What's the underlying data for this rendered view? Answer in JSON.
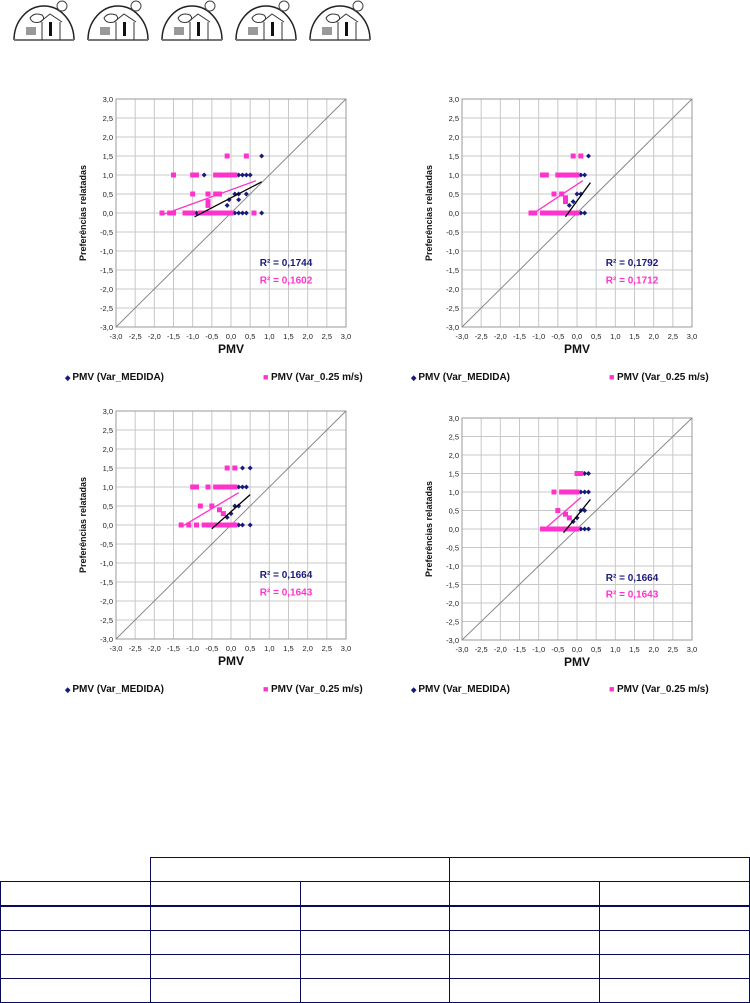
{
  "header": {
    "logo_count": 5
  },
  "chart_data": [
    {
      "type": "scatter",
      "xlabel": "PMV",
      "ylabel": "Preferências relatadas",
      "xlim": [
        -3,
        3
      ],
      "ylim": [
        -3,
        3
      ],
      "grid": true,
      "xticks": [
        "-3,0",
        "-2,5",
        "-2,0",
        "-1,5",
        "-1,0",
        "-0,5",
        "0,0",
        "0,5",
        "1,0",
        "1,5",
        "2,0",
        "2,5",
        "3,0"
      ],
      "yticks": [
        "3,0",
        "2,5",
        "2,0",
        "1,5",
        "1,0",
        "0,5",
        "0,0",
        "-0,5",
        "-1,0",
        "-1,5",
        "-2,0",
        "-2,5",
        "-3,0"
      ],
      "series": [
        {
          "name": "PMV (Var_MEDIDA)",
          "color": "#1a1a7a",
          "marker": "diamond",
          "r2": "R² = 0,1744",
          "points": [
            [
              -0.9,
              0
            ],
            [
              -0.8,
              0
            ],
            [
              0.1,
              0
            ],
            [
              0.2,
              0
            ],
            [
              0.3,
              0
            ],
            [
              0.4,
              0
            ],
            [
              0.8,
              0
            ],
            [
              0.1,
              0.5
            ],
            [
              0.2,
              0.5
            ],
            [
              0.4,
              0.5
            ],
            [
              -0.7,
              1
            ],
            [
              0.2,
              1
            ],
            [
              0.3,
              1
            ],
            [
              0.4,
              1
            ],
            [
              0.5,
              1
            ],
            [
              0.8,
              1.5
            ],
            [
              -0.1,
              0.2
            ],
            [
              0.2,
              0.35
            ],
            [
              -0.05,
              0.35
            ]
          ],
          "trend": [
            [
              -0.95,
              -0.1
            ],
            [
              0.8,
              0.82
            ]
          ]
        },
        {
          "name": "PMV (Var_0.25 m/s)",
          "color": "#ff33cc",
          "marker": "square",
          "r2": "R² = 0,1602",
          "points": [
            [
              -1.8,
              0
            ],
            [
              -1.6,
              0
            ],
            [
              -1.5,
              0
            ],
            [
              -1.2,
              0
            ],
            [
              -1.1,
              0
            ],
            [
              -1.0,
              0
            ],
            [
              -0.8,
              0
            ],
            [
              -0.7,
              0
            ],
            [
              -0.6,
              0
            ],
            [
              -0.5,
              0
            ],
            [
              -0.4,
              0
            ],
            [
              -0.3,
              0
            ],
            [
              -0.2,
              0
            ],
            [
              -0.1,
              0
            ],
            [
              0.0,
              0
            ],
            [
              0.6,
              0
            ],
            [
              -1.0,
              0.5
            ],
            [
              -0.6,
              0.5
            ],
            [
              -0.4,
              0.5
            ],
            [
              -0.3,
              0.5
            ],
            [
              -0.6,
              0.3
            ],
            [
              -0.6,
              0.2
            ],
            [
              -1.5,
              1
            ],
            [
              -1.0,
              1
            ],
            [
              -0.9,
              1
            ],
            [
              -0.4,
              1
            ],
            [
              -0.3,
              1
            ],
            [
              -0.2,
              1
            ],
            [
              -0.1,
              1
            ],
            [
              0.0,
              1
            ],
            [
              0.1,
              1
            ],
            [
              -0.1,
              1.5
            ],
            [
              0.4,
              1.5
            ]
          ],
          "trend": [
            [
              -1.8,
              -0.05
            ],
            [
              0.65,
              0.85
            ]
          ]
        }
      ]
    },
    {
      "type": "scatter",
      "xlabel": "PMV",
      "ylabel": "Preferências relatadas",
      "xlim": [
        -3,
        3
      ],
      "ylim": [
        -3,
        3
      ],
      "grid": true,
      "xticks": [
        "-3,0",
        "-2,5",
        "-2,0",
        "-1,5",
        "-1,0",
        "-0,5",
        "0,0",
        "0,5",
        "1,0",
        "1,5",
        "2,0",
        "2,5",
        "3,0"
      ],
      "yticks": [
        "3,0",
        "2,5",
        "2,0",
        "1,5",
        "1,0",
        "0,5",
        "0,0",
        "-0,5",
        "-1,0",
        "-1,5",
        "-2,0",
        "-2,5",
        "-3,0"
      ],
      "series": [
        {
          "name": "PMV (Var_MEDIDA)",
          "color": "#1a1a7a",
          "marker": "diamond",
          "r2": "R² = 0,1792",
          "points": [
            [
              -0.3,
              0
            ],
            [
              -0.2,
              0
            ],
            [
              0.0,
              0
            ],
            [
              0.1,
              0
            ],
            [
              0.2,
              0
            ],
            [
              -0.1,
              0.3
            ],
            [
              0.0,
              0.5
            ],
            [
              0.1,
              0.5
            ],
            [
              -0.2,
              0.2
            ],
            [
              0.0,
              1
            ],
            [
              0.1,
              1
            ],
            [
              0.2,
              1
            ],
            [
              0.3,
              1.5
            ],
            [
              0.1,
              1.5
            ]
          ],
          "trend": [
            [
              -0.3,
              -0.1
            ],
            [
              0.35,
              0.8
            ]
          ]
        },
        {
          "name": "PMV (Var_0.25 m/s)",
          "color": "#ff33cc",
          "marker": "square",
          "r2": "R² = 0,1712",
          "points": [
            [
              -1.2,
              0
            ],
            [
              -1.1,
              0
            ],
            [
              -0.9,
              0
            ],
            [
              -0.8,
              0
            ],
            [
              -0.7,
              0
            ],
            [
              -0.6,
              0
            ],
            [
              -0.5,
              0
            ],
            [
              -0.4,
              0
            ],
            [
              -0.3,
              0
            ],
            [
              -0.2,
              0
            ],
            [
              -0.1,
              0
            ],
            [
              0.0,
              0
            ],
            [
              -0.6,
              0.5
            ],
            [
              -0.4,
              0.5
            ],
            [
              -0.3,
              0.4
            ],
            [
              -0.3,
              0.3
            ],
            [
              -0.9,
              1
            ],
            [
              -0.8,
              1
            ],
            [
              -0.5,
              1
            ],
            [
              -0.4,
              1
            ],
            [
              -0.3,
              1
            ],
            [
              -0.2,
              1
            ],
            [
              -0.1,
              1
            ],
            [
              0.0,
              1
            ],
            [
              -0.1,
              1.5
            ],
            [
              0.1,
              1.5
            ]
          ],
          "trend": [
            [
              -1.2,
              -0.05
            ],
            [
              0.15,
              0.85
            ]
          ]
        }
      ]
    },
    {
      "type": "scatter",
      "xlabel": "PMV",
      "ylabel": "Preferências relatadas",
      "xlim": [
        -3,
        3
      ],
      "ylim": [
        -3,
        3
      ],
      "grid": true,
      "xticks": [
        "-3,0",
        "-2,5",
        "-2,0",
        "-1,5",
        "-1,0",
        "-0,5",
        "0,0",
        "0,5",
        "1,0",
        "1,5",
        "2,0",
        "2,5",
        "3,0"
      ],
      "yticks": [
        "3,0",
        "2,5",
        "2,0",
        "1,5",
        "1,0",
        "0,5",
        "0,0",
        "-0,5",
        "-1,0",
        "-1,5",
        "-2,0",
        "-2,5",
        "-3,0"
      ],
      "series": [
        {
          "name": "PMV (Var_MEDIDA)",
          "color": "#1a1a7a",
          "marker": "diamond",
          "r2": "R² = 0,1664",
          "points": [
            [
              -0.4,
              0
            ],
            [
              0.1,
              0
            ],
            [
              0.2,
              0
            ],
            [
              0.3,
              0
            ],
            [
              0.5,
              0
            ],
            [
              0.0,
              0.3
            ],
            [
              0.1,
              0.5
            ],
            [
              0.2,
              0.5
            ],
            [
              -0.1,
              0.2
            ],
            [
              0.1,
              1
            ],
            [
              0.2,
              1
            ],
            [
              0.3,
              1
            ],
            [
              0.4,
              1
            ],
            [
              0.3,
              1.5
            ],
            [
              0.5,
              1.5
            ]
          ],
          "trend": [
            [
              -0.5,
              -0.1
            ],
            [
              0.5,
              0.8
            ]
          ]
        },
        {
          "name": "PMV (Var_0.25 m/s)",
          "color": "#ff33cc",
          "marker": "square",
          "r2": "R² = 0,1643",
          "points": [
            [
              -1.3,
              0
            ],
            [
              -1.1,
              0
            ],
            [
              -0.9,
              0
            ],
            [
              -0.7,
              0
            ],
            [
              -0.6,
              0
            ],
            [
              -0.5,
              0
            ],
            [
              -0.4,
              0
            ],
            [
              -0.3,
              0
            ],
            [
              -0.2,
              0
            ],
            [
              -0.1,
              0
            ],
            [
              0.0,
              0
            ],
            [
              0.1,
              0
            ],
            [
              -0.8,
              0.5
            ],
            [
              -0.5,
              0.5
            ],
            [
              -0.3,
              0.4
            ],
            [
              -0.2,
              0.3
            ],
            [
              -1.0,
              1
            ],
            [
              -0.9,
              1
            ],
            [
              -0.6,
              1
            ],
            [
              -0.4,
              1
            ],
            [
              -0.3,
              1
            ],
            [
              -0.2,
              1
            ],
            [
              -0.1,
              1
            ],
            [
              0.0,
              1
            ],
            [
              0.1,
              1
            ],
            [
              -0.1,
              1.5
            ],
            [
              0.1,
              1.5
            ]
          ],
          "trend": [
            [
              -1.3,
              -0.05
            ],
            [
              0.2,
              0.85
            ]
          ]
        }
      ]
    },
    {
      "type": "scatter",
      "xlabel": "PMV",
      "ylabel": "Preferências relatadas",
      "xlim": [
        -3,
        3
      ],
      "ylim": [
        -3,
        3
      ],
      "grid": true,
      "xticks": [
        "-3,0",
        "-2,5",
        "-2,0",
        "-1,5",
        "-1,0",
        "-0,5",
        "0,0",
        "0,5",
        "1,0",
        "1,5",
        "2,0",
        "2,5",
        "3,0"
      ],
      "yticks": [
        "3,0",
        "2,5",
        "2,0",
        "1,5",
        "1,0",
        "0,5",
        "0,0",
        "-0,5",
        "-1,0",
        "-1,5",
        "-2,0",
        "-2,5",
        "-3,0"
      ],
      "series": [
        {
          "name": "PMV (Var_MEDIDA)",
          "color": "#1a1a7a",
          "marker": "diamond",
          "r2": "R² = 0,1664",
          "points": [
            [
              -0.3,
              0
            ],
            [
              0.0,
              0
            ],
            [
              0.1,
              0
            ],
            [
              0.2,
              0
            ],
            [
              0.3,
              0
            ],
            [
              0.0,
              0.3
            ],
            [
              0.1,
              0.5
            ],
            [
              0.2,
              0.5
            ],
            [
              -0.1,
              0.2
            ],
            [
              0.1,
              1
            ],
            [
              0.2,
              1
            ],
            [
              0.3,
              1
            ],
            [
              0.2,
              1.5
            ],
            [
              0.3,
              1.5
            ]
          ],
          "trend": [
            [
              -0.35,
              -0.1
            ],
            [
              0.35,
              0.8
            ]
          ]
        },
        {
          "name": "PMV (Var_0.25 m/s)",
          "color": "#ff33cc",
          "marker": "square",
          "r2": "R² = 0,1643",
          "points": [
            [
              -0.9,
              0
            ],
            [
              -0.8,
              0
            ],
            [
              -0.7,
              0
            ],
            [
              -0.6,
              0
            ],
            [
              -0.5,
              0
            ],
            [
              -0.4,
              0
            ],
            [
              -0.3,
              0
            ],
            [
              -0.2,
              0
            ],
            [
              -0.1,
              0
            ],
            [
              0.0,
              0
            ],
            [
              -0.5,
              0.5
            ],
            [
              -0.3,
              0.4
            ],
            [
              -0.2,
              0.3
            ],
            [
              -0.6,
              1
            ],
            [
              -0.4,
              1
            ],
            [
              -0.3,
              1
            ],
            [
              -0.2,
              1
            ],
            [
              -0.1,
              1
            ],
            [
              0.0,
              1
            ],
            [
              0.1,
              1.5
            ],
            [
              0.0,
              1.5
            ]
          ],
          "trend": [
            [
              -0.9,
              -0.05
            ],
            [
              0.1,
              0.85
            ]
          ]
        }
      ]
    }
  ],
  "table": {
    "rows": 6,
    "cols": 5
  }
}
